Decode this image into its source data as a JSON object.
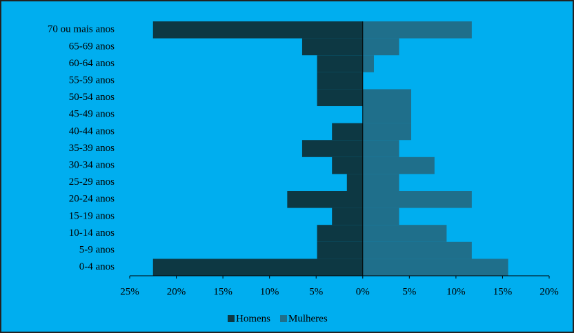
{
  "chart_data": {
    "type": "pyramid",
    "categories": [
      "70 ou mais anos",
      "65-69 anos",
      "60-64 anos",
      "55-59 anos",
      "50-54 anos",
      "45-49 anos",
      "40-44 anos",
      "35-39 anos",
      "30-34 anos",
      "25-29 anos",
      "20-24 anos",
      "15-19 anos",
      "10-14 anos",
      "5-9 anos",
      "0-4 anos"
    ],
    "series": [
      {
        "name": "Homens",
        "color": "#0d3843",
        "values": [
          -22.5,
          -6.5,
          -4.9,
          -4.9,
          -4.9,
          0,
          -3.3,
          -6.5,
          -3.3,
          -1.7,
          -8.1,
          -3.3,
          -4.9,
          -4.9,
          -22.5
        ]
      },
      {
        "name": "Mulheres",
        "color": "#1f6f8b",
        "values": [
          11.7,
          3.9,
          1.2,
          0,
          5.2,
          5.2,
          5.2,
          3.9,
          7.7,
          3.9,
          11.7,
          3.9,
          9.0,
          11.7,
          15.6
        ]
      }
    ],
    "xlim": [
      -25,
      20
    ],
    "xticks": [
      {
        "value": -25,
        "label": "25%"
      },
      {
        "value": -20,
        "label": "20%"
      },
      {
        "value": -15,
        "label": "15%"
      },
      {
        "value": -10,
        "label": "10%"
      },
      {
        "value": -5,
        "label": "5%"
      },
      {
        "value": 0,
        "label": "0%"
      },
      {
        "value": 5,
        "label": "5%"
      },
      {
        "value": 10,
        "label": "10%"
      },
      {
        "value": 15,
        "label": "15%"
      },
      {
        "value": 20,
        "label": "20%"
      }
    ],
    "legend": "bottom",
    "background": "#00aeef"
  }
}
